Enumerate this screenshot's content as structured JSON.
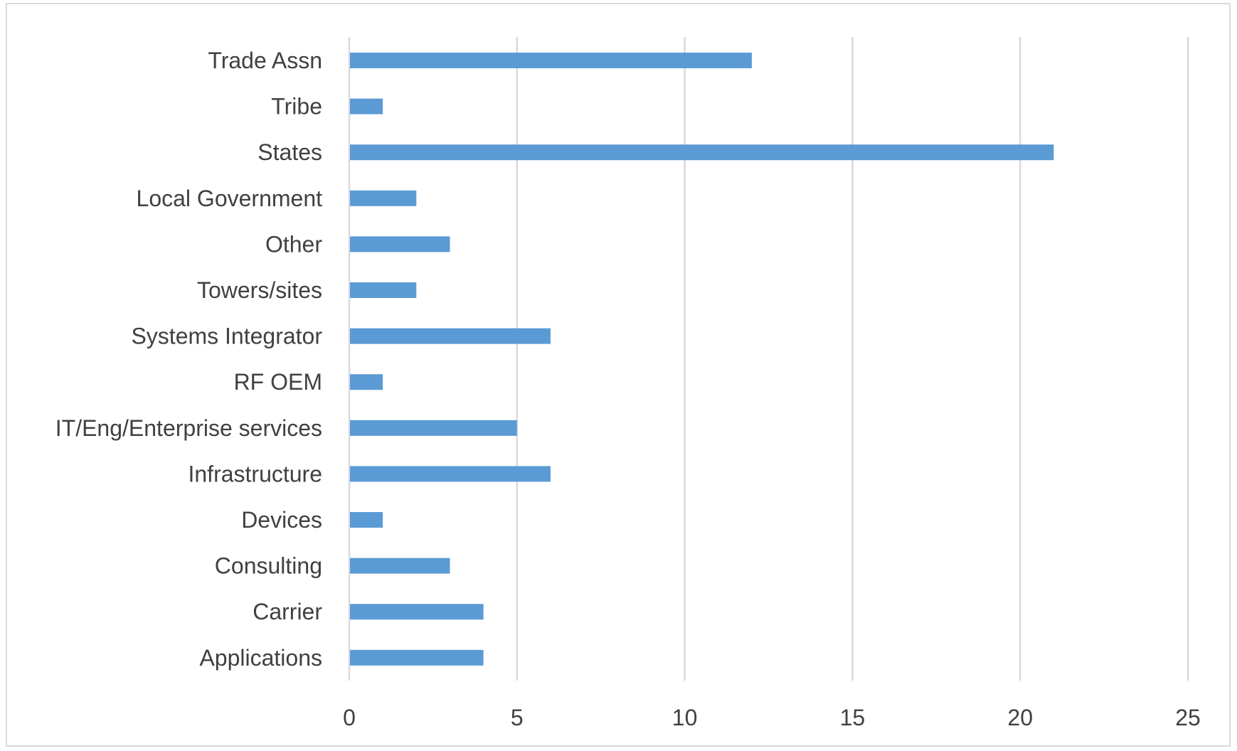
{
  "chart_data": {
    "type": "bar",
    "orientation": "horizontal",
    "title": "",
    "xlabel": "",
    "ylabel": "",
    "categories": [
      "Trade Assn",
      "Tribe",
      "States",
      "Local Government",
      "Other",
      "Towers/sites",
      "Systems Integrator",
      "RF OEM",
      "IT/Eng/Enterprise services",
      "Infrastructure",
      "Devices",
      "Consulting",
      "Carrier",
      "Applications"
    ],
    "values": [
      12,
      1,
      21,
      2,
      3,
      2,
      6,
      1,
      5,
      6,
      1,
      3,
      4,
      4
    ],
    "xlim": [
      0,
      25
    ],
    "xticks": [
      0,
      5,
      10,
      15,
      20,
      25
    ],
    "grid": "vertical",
    "legend": "none",
    "bar_color": "#5b9bd5"
  }
}
